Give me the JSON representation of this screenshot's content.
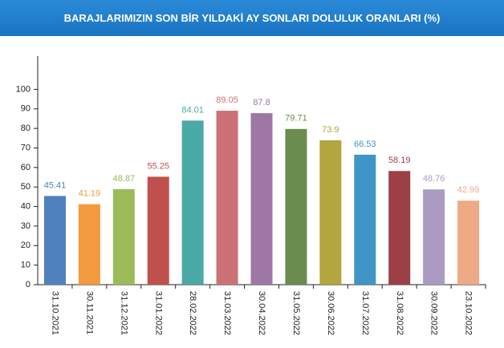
{
  "chart_data": {
    "type": "bar",
    "title": "BARAJLARIMIZIN SON BİR YILDAKİ AY SONLARI DOLULUK ORANLARI (%)",
    "categories": [
      "31.10.2021",
      "30.11.2021",
      "31.12.2021",
      "31.01.2022",
      "28.02.2022",
      "31.03.2022",
      "30.04.2022",
      "31.05.2022",
      "30.06.2022",
      "31.07.2022",
      "31.08.2022",
      "30.09.2022",
      "23.10.2022"
    ],
    "values": [
      45.41,
      41.19,
      48.87,
      55.25,
      84.01,
      89.05,
      87.8,
      79.71,
      73.9,
      66.53,
      58.19,
      48.76,
      42.99
    ],
    "colors": [
      "#4f81bd",
      "#f39a3e",
      "#9bbb59",
      "#c0504d",
      "#4ba9a6",
      "#cc7277",
      "#9e77a6",
      "#6a8c4e",
      "#b3a53f",
      "#3f96c6",
      "#9c3f46",
      "#ab9bc3",
      "#eea985"
    ],
    "ylim": [
      0,
      117
    ],
    "yticks": [
      0,
      10,
      20,
      30,
      40,
      50,
      60,
      70,
      80,
      90,
      100
    ]
  }
}
